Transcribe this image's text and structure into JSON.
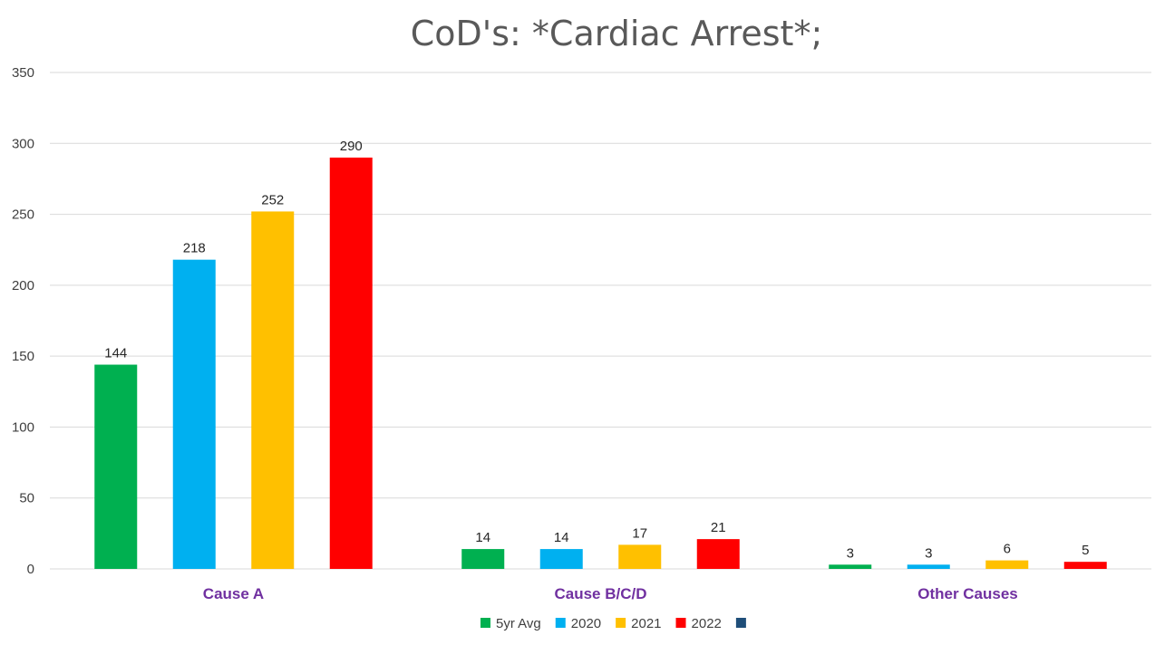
{
  "chart_data": {
    "type": "bar",
    "title": "CoD's: *Cardiac Arrest*;",
    "categories": [
      "Cause A",
      "Cause B/C/D",
      "Other Causes"
    ],
    "series": [
      {
        "name": "5yr Avg",
        "color": "#00b050",
        "values": [
          144,
          14,
          3
        ]
      },
      {
        "name": "2020",
        "color": "#00b0f0",
        "values": [
          218,
          14,
          3
        ]
      },
      {
        "name": "2021",
        "color": "#ffc000",
        "values": [
          252,
          17,
          6
        ]
      },
      {
        "name": "2022",
        "color": "#ff0000",
        "values": [
          290,
          21,
          5
        ]
      }
    ],
    "extra_legend_entry": {
      "name": "",
      "color": "#1f4e79"
    },
    "ylim": [
      0,
      350
    ],
    "yticks": [
      0,
      50,
      100,
      150,
      200,
      250,
      300,
      350
    ],
    "xlabel": "",
    "ylabel": "",
    "grid": true,
    "legend_position": "bottom",
    "category_label_color": "#7030a0"
  }
}
